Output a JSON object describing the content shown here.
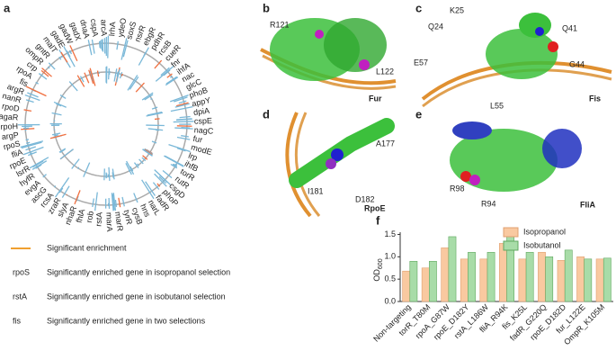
{
  "panels": {
    "a": {
      "label": "a",
      "genes": [
        {
          "name": "lrhA"
        },
        {
          "name": "ydeO"
        },
        {
          "name": "soxS"
        },
        {
          "name": "nsrR",
          "color": "#3cb043"
        },
        {
          "name": "ebgR"
        },
        {
          "name": "pdhR"
        },
        {
          "name": "rcsB"
        },
        {
          "name": "cueR"
        },
        {
          "name": "fnr"
        },
        {
          "name": "ihfA"
        },
        {
          "name": "nac"
        },
        {
          "name": "glcC"
        },
        {
          "name": "phoB"
        },
        {
          "name": "appY"
        },
        {
          "name": "dpiA"
        },
        {
          "name": "cspE"
        },
        {
          "name": "nagC"
        },
        {
          "name": "fur",
          "color": "#9b30d0"
        },
        {
          "name": "modE"
        },
        {
          "name": "lrp"
        },
        {
          "name": "ihfB"
        },
        {
          "name": "torR"
        },
        {
          "name": "rutR"
        },
        {
          "name": "csgD"
        },
        {
          "name": "phoP"
        },
        {
          "name": "fadR"
        },
        {
          "name": "narL"
        },
        {
          "name": "hns"
        },
        {
          "name": "cysB"
        },
        {
          "name": "tyrR",
          "color": "#f0a030"
        },
        {
          "name": "marR"
        },
        {
          "name": "marA"
        },
        {
          "name": "rstA",
          "color": "#3cb043"
        },
        {
          "name": "rob"
        },
        {
          "name": "fhlA"
        },
        {
          "name": "nhaR"
        },
        {
          "name": "slyA"
        },
        {
          "name": "zraR"
        },
        {
          "name": "rcsA"
        },
        {
          "name": "ascG"
        },
        {
          "name": "evgA"
        },
        {
          "name": "hyfR"
        },
        {
          "name": "lsrR"
        },
        {
          "name": "rpoE",
          "color": "#f0a030"
        },
        {
          "name": "fliA"
        },
        {
          "name": "rpoS",
          "color": "#f0a030"
        },
        {
          "name": "argP"
        },
        {
          "name": "rpoH"
        },
        {
          "name": "agaR"
        },
        {
          "name": "rpoD"
        },
        {
          "name": "nanR"
        },
        {
          "name": "argR"
        },
        {
          "name": "fis",
          "color": "#9b30d0"
        },
        {
          "name": "rpoA"
        },
        {
          "name": "crp"
        },
        {
          "name": "ompR"
        },
        {
          "name": "gntR"
        },
        {
          "name": "malT"
        },
        {
          "name": "gadE"
        },
        {
          "name": "gadW"
        },
        {
          "name": "gadX"
        },
        {
          "name": "dnaA"
        },
        {
          "name": "cspA",
          "color": "#3cb043"
        },
        {
          "name": "arcA"
        }
      ],
      "legend": [
        {
          "text": "Significant enrichment",
          "color": "#f0a030"
        },
        {
          "key": "rpoS",
          "text": "Significantly enriched gene in isopropanol selection",
          "color": "#f0a030"
        },
        {
          "key": "rstA",
          "text": "Significantly enriched gene in isobutanol selection",
          "color": "#3cb043"
        },
        {
          "key": "fis",
          "text": "Significantly enriched gene in two selections",
          "color": "#9b30d0"
        }
      ]
    },
    "b": {
      "label": "b",
      "protein": "Fur",
      "residues": [
        {
          "text": "R121",
          "color": "#2040e0"
        },
        {
          "text": "L122",
          "color": "#8030b0"
        }
      ]
    },
    "c": {
      "label": "c",
      "protein": "Fis",
      "residues": [
        {
          "text": "K25",
          "color": "#8030b0"
        },
        {
          "text": "Q24",
          "color": "#2040e0"
        },
        {
          "text": "Q41",
          "color": "#e02020"
        },
        {
          "text": "E57",
          "color": "#e02020"
        },
        {
          "text": "G44",
          "color": "#e02020"
        },
        {
          "text": "L55",
          "color": "#8030b0"
        }
      ]
    },
    "d": {
      "label": "d",
      "protein": "RpoE",
      "residues": [
        {
          "text": "A177",
          "color": "#2040e0"
        },
        {
          "text": "I181",
          "color": "#8030b0"
        },
        {
          "text": "D182",
          "color": "#8030b0"
        }
      ]
    },
    "e": {
      "label": "e",
      "protein": "FliA",
      "residues": [
        {
          "text": "R98",
          "color": "#e02020"
        },
        {
          "text": "R94",
          "color": "#8030b0"
        }
      ]
    }
  },
  "chart_data": {
    "type": "bar",
    "label": "f",
    "ylabel": "OD",
    "ylabel_sub": "600",
    "categories": [
      "Non-targeting",
      "torR_T80M",
      "rpoA_G87W",
      "rpoE_D182Y",
      "rstA_L186W",
      "fliA_R94K",
      "fis_K25L",
      "fadR_G220Q",
      "rpoE_D182D",
      "fur_L122E",
      "OmpR_K105M"
    ],
    "series": [
      {
        "name": "Isopropanol",
        "color": "#f9c9a0",
        "values": [
          0.68,
          0.75,
          1.2,
          0.95,
          0.95,
          1.3,
          0.95,
          1.1,
          0.92,
          1.0,
          0.95
        ]
      },
      {
        "name": "Isobutanol",
        "color": "#a8dca8",
        "values": [
          0.9,
          0.9,
          1.45,
          1.1,
          1.1,
          1.45,
          1.1,
          1.0,
          1.15,
          0.95,
          0.97
        ]
      }
    ],
    "ylim": [
      0,
      1.55
    ],
    "yticks": [
      {
        "value": 0,
        "label": "0.0"
      },
      0.5,
      {
        "value": 1,
        "label": "1.0"
      },
      1.5
    ],
    "legend": "upper right"
  }
}
